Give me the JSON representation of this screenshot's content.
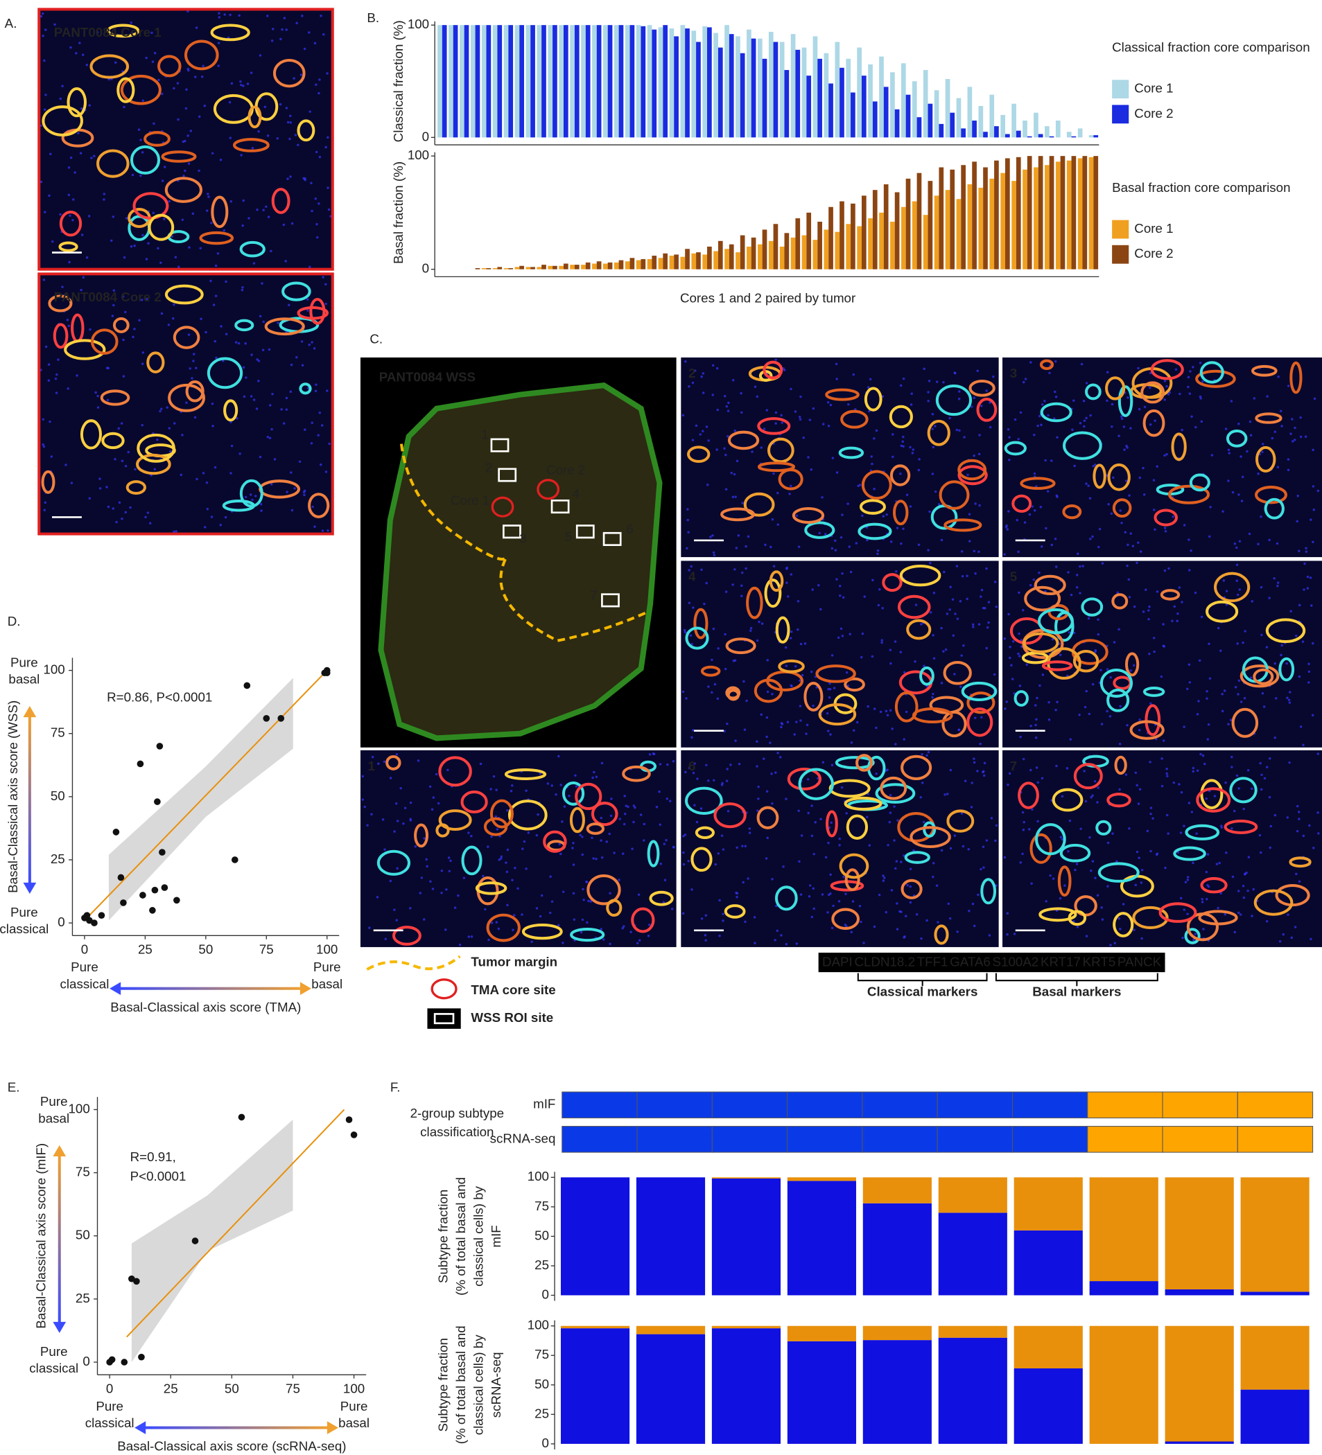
{
  "panel_labels": [
    "A.",
    "B.",
    "C.",
    "D.",
    "E.",
    "F."
  ],
  "panel_a": {
    "labels": [
      "PANT0084 Core 1",
      "PANT0084 Core 2"
    ]
  },
  "panel_c": {
    "title": "PANT0084 WSS",
    "core_labels": [
      "Core 1",
      "Core 2"
    ],
    "roi_labels": [
      "1",
      "2",
      "3",
      "4",
      "5",
      "6",
      "7"
    ],
    "tile_labels": [
      "2",
      "3",
      "4",
      "5",
      "1",
      "6",
      "7"
    ],
    "legend": [
      "Tumor margin",
      "TMA core site",
      "WSS ROI site"
    ],
    "markers": [
      {
        "text": "DAPI",
        "color": "#3535ff"
      },
      {
        "text": "CLDN18.2",
        "color": "#ffff00"
      },
      {
        "text": "TFF1",
        "color": "#ff2020"
      },
      {
        "text": "GATA6",
        "color": "#20e020"
      },
      {
        "text": "S100A2",
        "color": "#ff40ff"
      },
      {
        "text": "KRT17",
        "color": "#30f0f0"
      },
      {
        "text": "KRT5",
        "color": "#ffffff"
      },
      {
        "text": "PANCK",
        "color": "#ffa500"
      }
    ],
    "marker_groups": [
      {
        "text": "Classical markers",
        "color": "#2233cc"
      },
      {
        "text": "Basal markers",
        "color": "#f0a020"
      }
    ]
  },
  "chart_data": [
    {
      "type": "bar",
      "y_label": "Classical fraction (%)",
      "ylim": [
        0,
        100
      ],
      "yticks": [
        0,
        100
      ],
      "legend_title": "Classical fraction core comparison",
      "series": [
        {
          "name": "Core 1",
          "color": "#add8e6",
          "values": [
            100,
            100,
            100,
            100,
            100,
            100,
            100,
            100,
            100,
            100,
            100,
            100,
            100,
            100,
            100,
            100,
            100,
            100,
            100,
            100,
            98,
            97,
            100,
            95,
            99,
            93,
            100,
            90,
            96,
            88,
            94,
            85,
            92,
            80,
            90,
            75,
            85,
            70,
            80,
            65,
            72,
            58,
            66,
            50,
            60,
            42,
            52,
            35,
            45,
            28,
            38,
            20,
            30,
            15,
            22,
            10,
            15,
            5,
            8,
            2
          ]
        },
        {
          "name": "Core 2",
          "color": "#1a2be0",
          "values": [
            100,
            100,
            100,
            100,
            100,
            100,
            100,
            100,
            100,
            100,
            100,
            100,
            100,
            100,
            100,
            100,
            100,
            100,
            99,
            96,
            100,
            90,
            97,
            85,
            98,
            80,
            92,
            75,
            88,
            70,
            85,
            60,
            78,
            55,
            70,
            48,
            62,
            40,
            55,
            32,
            45,
            25,
            38,
            18,
            30,
            12,
            22,
            8,
            15,
            5,
            10,
            3,
            6,
            1,
            3,
            1,
            0,
            1,
            0,
            2
          ]
        }
      ]
    },
    {
      "type": "bar",
      "y_label": "Basal fraction (%)",
      "x_label": "Cores 1 and 2 paired by tumor",
      "ylim": [
        0,
        100
      ],
      "yticks": [
        0,
        100
      ],
      "legend_title": "Basal fraction core comparison",
      "series": [
        {
          "name": "Core 1",
          "color": "#f0a020",
          "values": [
            0,
            0,
            0,
            0,
            1,
            1,
            1,
            2,
            2,
            2,
            3,
            3,
            4,
            4,
            5,
            5,
            6,
            7,
            8,
            9,
            10,
            12,
            11,
            14,
            13,
            16,
            18,
            15,
            20,
            22,
            25,
            20,
            28,
            30,
            26,
            35,
            33,
            40,
            38,
            45,
            50,
            42,
            55,
            60,
            48,
            65,
            70,
            62,
            75,
            72,
            80,
            85,
            78,
            88,
            90,
            92,
            95,
            96,
            98,
            99
          ]
        },
        {
          "name": "Core 2",
          "color": "#8b4513",
          "values": [
            0,
            0,
            0,
            1,
            1,
            2,
            1,
            3,
            2,
            4,
            3,
            5,
            4,
            6,
            7,
            6,
            8,
            10,
            9,
            12,
            14,
            13,
            18,
            15,
            20,
            25,
            22,
            30,
            28,
            35,
            40,
            32,
            45,
            50,
            42,
            55,
            60,
            58,
            65,
            70,
            75,
            68,
            80,
            85,
            78,
            90,
            88,
            92,
            95,
            90,
            96,
            98,
            99,
            100,
            100,
            100,
            100,
            100,
            100,
            100
          ]
        }
      ]
    },
    {
      "type": "scatter",
      "annotation": [
        "R=0.86, P<0.0001"
      ],
      "x_label": "Basal-Classical axis score (TMA)",
      "y_label": "Basal-Classical axis score (WSS)",
      "x_end_labels": [
        [
          "Pure",
          "classical"
        ],
        [
          "Pure",
          "basal"
        ]
      ],
      "y_end_labels": [
        [
          "Pure",
          "classical"
        ],
        [
          "Pure",
          "basal"
        ]
      ],
      "xlim": [
        -5,
        105
      ],
      "ylim": [
        -5,
        105
      ],
      "xticks": [
        0,
        25,
        50,
        75,
        100
      ],
      "yticks": [
        0,
        25,
        50,
        75,
        100
      ],
      "color": "#111111",
      "x": [
        1,
        2,
        4,
        0,
        7,
        13,
        15,
        16,
        23,
        24,
        28,
        29,
        31,
        30,
        32,
        33,
        38,
        62,
        67,
        75,
        81,
        99,
        100,
        100
      ],
      "y": [
        3,
        1,
        0,
        2,
        3,
        36,
        18,
        8,
        63,
        11,
        5,
        13,
        70,
        48,
        28,
        14,
        9,
        25,
        94,
        81,
        81,
        99,
        100,
        99
      ],
      "fit": {
        "color": "#e8900c",
        "x": [
          0,
          100
        ],
        "y": [
          1,
          100
        ]
      },
      "band": {
        "color": "#d0d0d0",
        "x": [
          10,
          50,
          86
        ],
        "upper": [
          27,
          62,
          97
        ],
        "lower": [
          1,
          42,
          69
        ]
      }
    },
    {
      "type": "scatter",
      "annotation": [
        "R=0.91,",
        "P<0.0001"
      ],
      "x_label": "Basal-Classical axis score (scRNA-seq)",
      "y_label": "Basal-Classical axis score (mIF)",
      "x_end_labels": [
        [
          "Pure",
          "classical"
        ],
        [
          "Pure",
          "basal"
        ]
      ],
      "y_end_labels": [
        [
          "Pure",
          "classical"
        ],
        [
          "Pure",
          "basal"
        ]
      ],
      "xlim": [
        -5,
        105
      ],
      "ylim": [
        -5,
        105
      ],
      "xticks": [
        0,
        25,
        50,
        75,
        100
      ],
      "yticks": [
        0,
        25,
        50,
        75,
        100
      ],
      "color": "#111111",
      "x": [
        0,
        1,
        6,
        13,
        9,
        11,
        35,
        54,
        98,
        100
      ],
      "y": [
        0,
        1,
        0,
        2,
        33,
        32,
        48,
        97,
        96,
        90
      ],
      "fit": {
        "color": "#e8900c",
        "x": [
          7,
          96
        ],
        "y": [
          10,
          100
        ]
      },
      "band": {
        "color": "#d0d0d0",
        "x": [
          9,
          40,
          75
        ],
        "upper": [
          47,
          66,
          96
        ],
        "lower": [
          0,
          44,
          60
        ]
      }
    },
    {
      "type": "heatmap",
      "title": [
        "2-group subtype",
        "classification"
      ],
      "series": [
        {
          "name": "mIF",
          "colors": [
            "#0a3ae8",
            "#0a3ae8",
            "#0a3ae8",
            "#0a3ae8",
            "#0a3ae8",
            "#0a3ae8",
            "#0a3ae8",
            "#ffa500",
            "#ffa500",
            "#ffa500"
          ]
        },
        {
          "name": "scRNA-seq",
          "colors": [
            "#0a3ae8",
            "#0a3ae8",
            "#0a3ae8",
            "#0a3ae8",
            "#0a3ae8",
            "#0a3ae8",
            "#0a3ae8",
            "#ffa500",
            "#ffa500",
            "#ffa500"
          ]
        }
      ]
    },
    {
      "type": "stacked_bar",
      "y_label": [
        "Subtype fraction",
        "(% of total basal and",
        "classical cells) by",
        "mIF"
      ],
      "ylim": [
        0,
        100
      ],
      "yticks": [
        0,
        25,
        50,
        75,
        100
      ],
      "series": [
        {
          "color": "#1010e0",
          "values": [
            100,
            100,
            99,
            97,
            78,
            70,
            55,
            12,
            5,
            3
          ]
        },
        {
          "color": "#e8900c",
          "values": [
            0,
            0,
            1,
            3,
            22,
            30,
            45,
            88,
            95,
            97
          ]
        }
      ]
    },
    {
      "type": "stacked_bar",
      "y_label": [
        "Subtype fraction",
        "(% of total basal and",
        "classical cells) by",
        "scRNA-seq"
      ],
      "ylim": [
        0,
        100
      ],
      "yticks": [
        0,
        25,
        50,
        75,
        100
      ],
      "series": [
        {
          "color": "#1010e0",
          "values": [
            98,
            93,
            98,
            87,
            88,
            90,
            64,
            0,
            2,
            46
          ]
        },
        {
          "color": "#e8900c",
          "values": [
            2,
            7,
            2,
            13,
            12,
            10,
            36,
            100,
            98,
            54
          ]
        }
      ]
    }
  ]
}
